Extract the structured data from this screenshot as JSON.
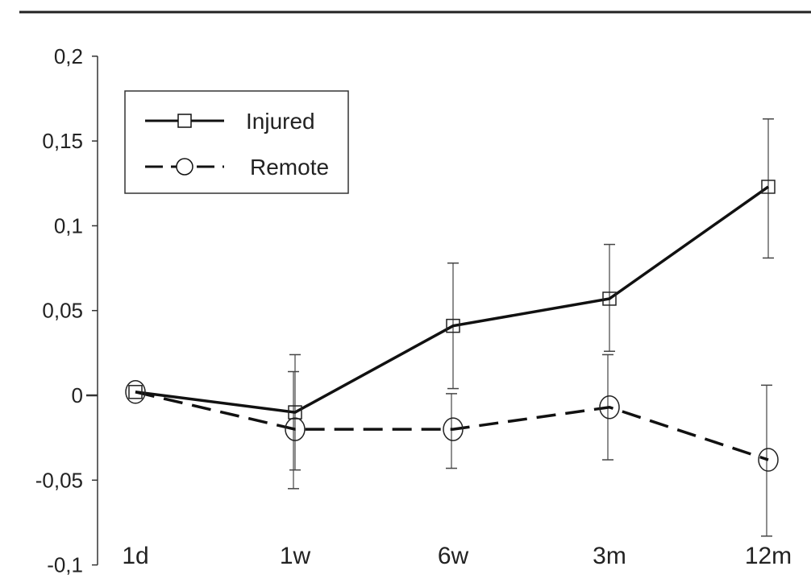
{
  "chart_data": {
    "type": "line",
    "title": "",
    "xlabel": "",
    "ylabel": "",
    "categories": [
      "1d",
      "1w",
      "6w",
      "3m",
      "12m"
    ],
    "ylim": [
      -0.1,
      0.2
    ],
    "yticks": [
      -0.1,
      -0.05,
      0,
      0.05,
      0.1,
      0.15,
      0.2
    ],
    "ytick_labels": [
      "-0,1",
      "-0,05",
      "0",
      "0,05",
      "0,1",
      "0,15",
      "0,2"
    ],
    "legend_position": "top-left",
    "grid": false,
    "series": [
      {
        "name": "Injured",
        "marker": "square",
        "line": "solid",
        "values": [
          0.002,
          -0.01,
          0.041,
          0.057,
          0.123
        ],
        "err_low": [
          null,
          -0.044,
          0.004,
          0.026,
          0.081
        ],
        "err_high": [
          null,
          0.024,
          0.078,
          0.089,
          0.163
        ]
      },
      {
        "name": "Remote",
        "marker": "circle",
        "line": "dashed",
        "values": [
          0.002,
          -0.02,
          -0.02,
          -0.007,
          -0.038
        ],
        "err_low": [
          null,
          -0.055,
          -0.043,
          -0.038,
          -0.083
        ],
        "err_high": [
          null,
          0.014,
          0.001,
          0.024,
          0.006
        ]
      }
    ]
  }
}
